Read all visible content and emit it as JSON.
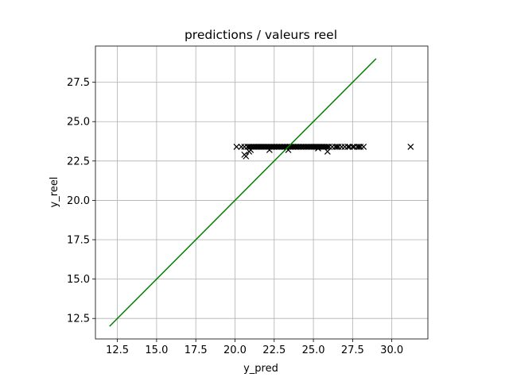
{
  "chart_data": {
    "type": "scatter",
    "title": "predictions / valeurs reel",
    "xlabel": "y_pred",
    "ylabel": "y_reel",
    "xlim": [
      11.1,
      32.3
    ],
    "ylim": [
      11.2,
      29.8
    ],
    "xticks": [
      12.5,
      15.0,
      17.5,
      20.0,
      22.5,
      25.0,
      27.5,
      30.0
    ],
    "xtick_labels": [
      "12.5",
      "15.0",
      "17.5",
      "20.0",
      "22.5",
      "25.0",
      "27.5",
      "30.0"
    ],
    "yticks": [
      12.5,
      15.0,
      17.5,
      20.0,
      22.5,
      25.0,
      27.5
    ],
    "ytick_labels": [
      "12.5",
      "15.0",
      "17.5",
      "20.0",
      "22.5",
      "25.0",
      "27.5"
    ],
    "grid": true,
    "series": [
      {
        "kind": "scatter",
        "marker": "x",
        "color": "#000000",
        "points": [
          [
            20.1,
            23.4
          ],
          [
            20.4,
            23.4
          ],
          [
            20.6,
            23.4
          ],
          [
            20.8,
            23.4
          ],
          [
            20.9,
            23.4
          ],
          [
            21.0,
            23.4
          ],
          [
            21.1,
            23.4
          ],
          [
            21.2,
            23.4
          ],
          [
            21.3,
            23.4
          ],
          [
            21.4,
            23.4
          ],
          [
            21.5,
            23.4
          ],
          [
            21.6,
            23.4
          ],
          [
            21.7,
            23.4
          ],
          [
            21.8,
            23.4
          ],
          [
            21.9,
            23.4
          ],
          [
            22.0,
            23.4
          ],
          [
            22.1,
            23.4
          ],
          [
            22.2,
            23.4
          ],
          [
            22.3,
            23.4
          ],
          [
            22.4,
            23.4
          ],
          [
            22.5,
            23.4
          ],
          [
            22.6,
            23.4
          ],
          [
            22.7,
            23.4
          ],
          [
            22.8,
            23.4
          ],
          [
            22.9,
            23.4
          ],
          [
            23.0,
            23.4
          ],
          [
            23.1,
            23.4
          ],
          [
            23.2,
            23.4
          ],
          [
            23.3,
            23.4
          ],
          [
            23.4,
            23.4
          ],
          [
            23.5,
            23.4
          ],
          [
            23.6,
            23.4
          ],
          [
            23.7,
            23.4
          ],
          [
            23.8,
            23.4
          ],
          [
            23.9,
            23.4
          ],
          [
            24.0,
            23.4
          ],
          [
            24.1,
            23.4
          ],
          [
            24.2,
            23.4
          ],
          [
            24.3,
            23.4
          ],
          [
            24.4,
            23.4
          ],
          [
            24.5,
            23.4
          ],
          [
            24.6,
            23.4
          ],
          [
            24.7,
            23.4
          ],
          [
            24.8,
            23.4
          ],
          [
            24.9,
            23.4
          ],
          [
            25.0,
            23.4
          ],
          [
            25.1,
            23.4
          ],
          [
            25.2,
            23.4
          ],
          [
            25.3,
            23.4
          ],
          [
            25.4,
            23.4
          ],
          [
            25.5,
            23.4
          ],
          [
            25.6,
            23.4
          ],
          [
            25.7,
            23.4
          ],
          [
            25.8,
            23.4
          ],
          [
            25.9,
            23.4
          ],
          [
            26.0,
            23.4
          ],
          [
            26.2,
            23.4
          ],
          [
            26.4,
            23.4
          ],
          [
            26.5,
            23.4
          ],
          [
            26.6,
            23.4
          ],
          [
            26.8,
            23.4
          ],
          [
            27.0,
            23.4
          ],
          [
            27.2,
            23.4
          ],
          [
            27.3,
            23.4
          ],
          [
            27.5,
            23.4
          ],
          [
            27.6,
            23.4
          ],
          [
            27.8,
            23.4
          ],
          [
            27.9,
            23.4
          ],
          [
            28.0,
            23.4
          ],
          [
            28.2,
            23.4
          ],
          [
            31.2,
            23.4
          ],
          [
            20.6,
            22.9
          ],
          [
            20.7,
            22.8
          ],
          [
            20.9,
            23.1
          ],
          [
            21.0,
            23.2
          ],
          [
            22.2,
            23.2
          ],
          [
            23.4,
            23.2
          ],
          [
            25.3,
            23.3
          ],
          [
            25.9,
            23.1
          ]
        ]
      },
      {
        "kind": "line",
        "color": "#008000",
        "points": [
          [
            12.0,
            12.0
          ],
          [
            29.0,
            29.0
          ]
        ]
      }
    ]
  }
}
